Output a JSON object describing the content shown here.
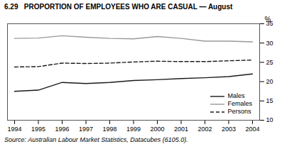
{
  "chart_data": {
    "type": "line",
    "title": "6.29   PROPORTION OF EMPLOYEES WHO ARE CASUAL — August",
    "source": "Source: Australian Labour Market Statistics, Datacubes (6105.0).",
    "ylabel": "%",
    "x": [
      1994,
      1995,
      1996,
      1997,
      1998,
      1999,
      2000,
      2001,
      2002,
      2003,
      2004
    ],
    "xlim": [
      1993.7,
      2004.3
    ],
    "xticks": [
      1994,
      1995,
      1996,
      1997,
      1998,
      1999,
      2000,
      2001,
      2002,
      2003,
      2004
    ],
    "ylim": [
      10,
      35
    ],
    "yticks": [
      10,
      15,
      20,
      25,
      30,
      35
    ],
    "grid": false,
    "legend": "lower right",
    "series": [
      {
        "name": "Males",
        "color": "#1a1a1a",
        "line_style": "solid",
        "values": [
          17.5,
          17.8,
          19.8,
          19.5,
          19.8,
          20.3,
          20.5,
          20.8,
          21.0,
          21.3,
          22.0
        ]
      },
      {
        "name": "Females",
        "color": "#999999",
        "line_style": "solid",
        "values": [
          31.2,
          31.3,
          31.9,
          31.5,
          31.2,
          31.1,
          31.7,
          31.2,
          30.5,
          30.5,
          30.3
        ]
      },
      {
        "name": "Persons",
        "color": "#1a1a1a",
        "line_style": "dashed",
        "values": [
          23.8,
          23.9,
          24.8,
          24.7,
          24.8,
          25.1,
          25.3,
          25.2,
          25.2,
          25.4,
          25.6
        ]
      }
    ]
  }
}
